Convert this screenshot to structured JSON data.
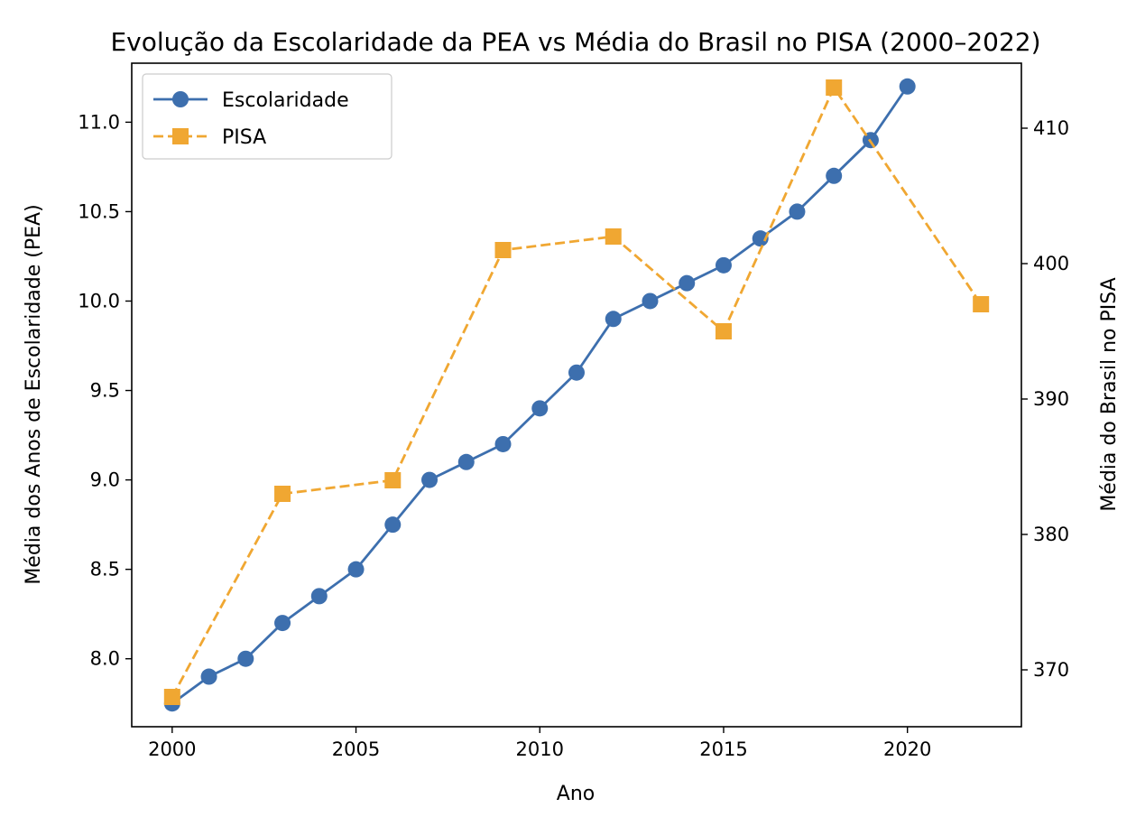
{
  "chart_data": {
    "type": "line",
    "title": "Evolução da Escolaridade da PEA vs Média do Brasil no PISA (2000–2022)",
    "xlabel": "Ano",
    "ylabel_left": "Média dos Anos de Escolaridade (PEA)",
    "ylabel_right": "Média do Brasil no PISA",
    "xlim": [
      1998.9,
      2023.1
    ],
    "ylim_left": [
      7.62,
      11.33
    ],
    "ylim_right": [
      365.8,
      414.8
    ],
    "x_ticks": [
      2000,
      2005,
      2010,
      2015,
      2020
    ],
    "y_left_ticks": [
      8.0,
      8.5,
      9.0,
      9.5,
      10.0,
      10.5,
      11.0
    ],
    "y_left_tick_labels": [
      "8.0",
      "8.5",
      "9.0",
      "9.5",
      "10.0",
      "10.5",
      "11.0"
    ],
    "y_right_ticks": [
      370,
      380,
      390,
      400,
      410
    ],
    "grid": false,
    "legend_position": "top-left",
    "series": [
      {
        "name": "Escolaridade",
        "axis": "left",
        "color": "#3d6fae",
        "marker": "circle",
        "linestyle": "solid",
        "x": [
          2000,
          2001,
          2002,
          2003,
          2004,
          2005,
          2006,
          2007,
          2008,
          2009,
          2010,
          2011,
          2012,
          2013,
          2014,
          2015,
          2016,
          2017,
          2018,
          2019,
          2020
        ],
        "values": [
          7.75,
          7.9,
          8.0,
          8.2,
          8.35,
          8.5,
          8.75,
          9.0,
          9.1,
          9.2,
          9.4,
          9.6,
          9.9,
          10.0,
          10.1,
          10.2,
          10.35,
          10.5,
          10.7,
          10.9,
          11.2
        ]
      },
      {
        "name": "PISA",
        "axis": "right",
        "color": "#f0a732",
        "marker": "square",
        "linestyle": "dashed",
        "x": [
          2000,
          2003,
          2006,
          2009,
          2012,
          2015,
          2018,
          2022
        ],
        "values": [
          368,
          383,
          384,
          401,
          402,
          395,
          413,
          397
        ]
      }
    ]
  }
}
